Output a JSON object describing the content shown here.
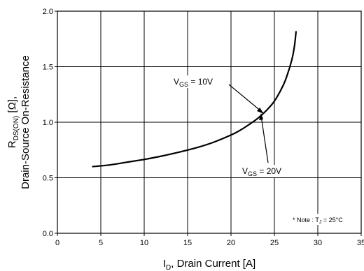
{
  "chart_data": {
    "type": "line",
    "title": "",
    "xlabel": {
      "main": "I",
      "sub": "D",
      "rest": ", Drain Current [A]"
    },
    "ylabel": {
      "line1_main": "R",
      "line1_sub": "DS(ON)",
      "line1_rest": " [Ω],",
      "line2": "Drain-Source On-Resistance"
    },
    "xlim": [
      0,
      35
    ],
    "ylim": [
      0.0,
      2.0
    ],
    "x_ticks": [
      "0",
      "5",
      "10",
      "15",
      "20",
      "25",
      "30",
      "35"
    ],
    "y_ticks": [
      "0.0",
      "0.5",
      "1.0",
      "1.5",
      "2.0"
    ],
    "grid": true,
    "series": [
      {
        "points": [
          [
            4,
            0.6
          ],
          [
            6,
            0.615
          ],
          [
            8,
            0.64
          ],
          [
            10,
            0.665
          ],
          [
            12,
            0.695
          ],
          [
            14,
            0.73
          ],
          [
            16,
            0.77
          ],
          [
            18,
            0.82
          ],
          [
            20,
            0.885
          ],
          [
            21,
            0.925
          ],
          [
            22,
            0.975
          ],
          [
            23,
            1.03
          ],
          [
            24,
            1.1
          ],
          [
            25,
            1.19
          ],
          [
            26,
            1.33
          ],
          [
            26.5,
            1.43
          ],
          [
            27,
            1.56
          ],
          [
            27.3,
            1.68
          ],
          [
            27.5,
            1.82
          ]
        ]
      }
    ],
    "annotations": [
      {
        "main": "V",
        "sub": "GS",
        "rest": " = 10V"
      },
      {
        "main": "V",
        "sub": "GS",
        "rest": " = 20V"
      }
    ],
    "note": {
      "prefix": "* Note : T",
      "sub": "J",
      "rest": " = 25°C"
    }
  }
}
